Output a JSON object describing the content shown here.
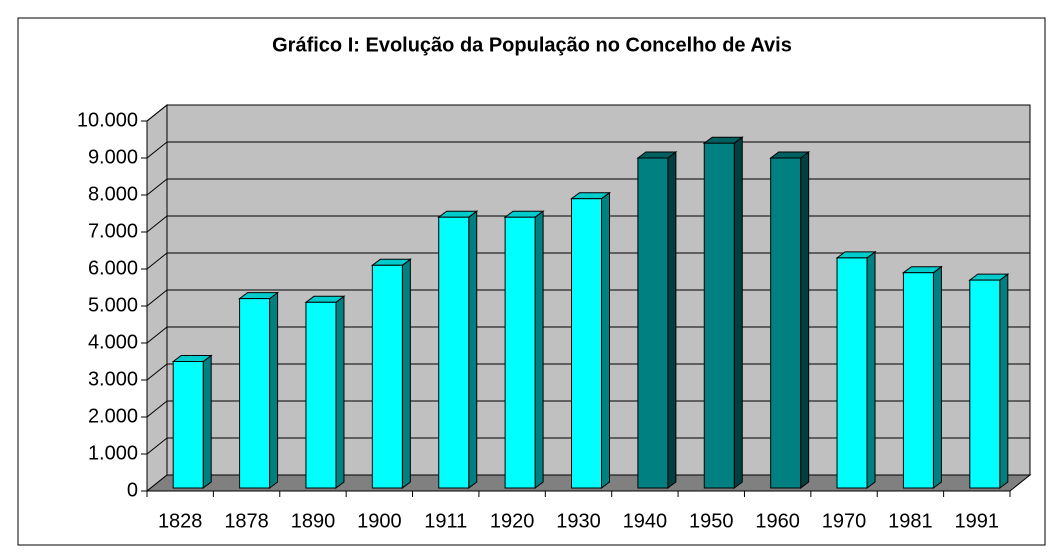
{
  "chart_data": {
    "type": "bar3d",
    "title": "Gráfico I: Evolução da População no Concelho de Avis",
    "categories": [
      "1828",
      "1878",
      "1890",
      "1900",
      "1911",
      "1920",
      "1930",
      "1940",
      "1950",
      "1960",
      "1970",
      "1981",
      "1991"
    ],
    "values": [
      3500,
      5200,
      5100,
      6100,
      7400,
      7400,
      7900,
      9000,
      9400,
      9000,
      6300,
      5900,
      5700
    ],
    "colors": [
      "#00ffff",
      "#00ffff",
      "#00ffff",
      "#00ffff",
      "#00ffff",
      "#00ffff",
      "#00ffff",
      "#008080",
      "#008080",
      "#008080",
      "#00ffff",
      "#00ffff",
      "#00ffff"
    ],
    "ylim": [
      0,
      10000
    ],
    "yticks": [
      0,
      {
        "value": 1000,
        "label": "1.000"
      },
      {
        "value": 2000,
        "label": "2.000"
      },
      {
        "value": 3000,
        "label": "3.000"
      },
      {
        "value": 4000,
        "label": "4.000"
      },
      {
        "value": 5000,
        "label": "5.000"
      },
      {
        "value": 6000,
        "label": "6.000"
      },
      {
        "value": 7000,
        "label": "7.000"
      },
      {
        "value": 8000,
        "label": "8.000"
      },
      {
        "value": 9000,
        "label": "9.000"
      },
      {
        "value": 10000,
        "label": "10.000"
      }
    ],
    "grid": true
  }
}
